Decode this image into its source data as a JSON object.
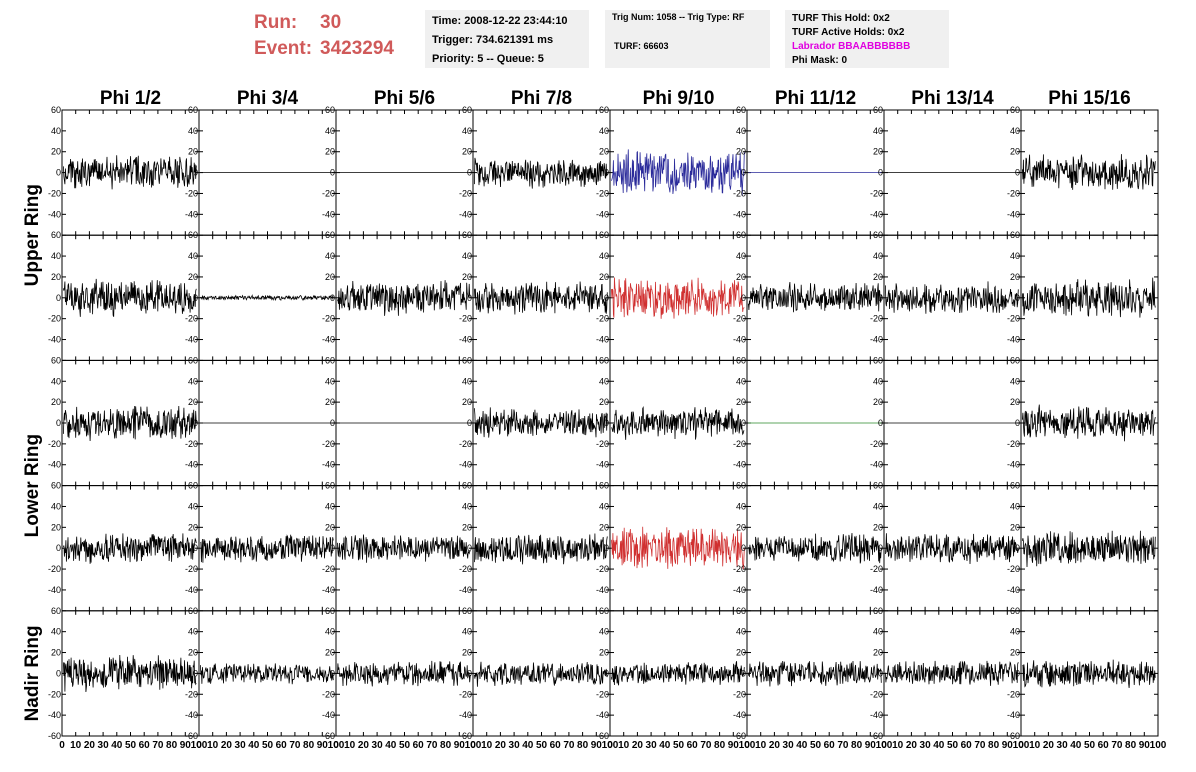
{
  "run_label": "Run:",
  "run_value": "30",
  "event_label": "Event:",
  "event_value": "3423294",
  "info": {
    "time": "Time: 2008-12-22 23:44:10",
    "trigger": "Trigger: 734.621391 ms",
    "priority": "Priority: 5 -- Queue: 5",
    "trig_num": "Trig Num: 1058 -- Trig Type: RF",
    "turf": "TURF: 66603",
    "turf_this_hold": "TURF This Hold: 0x2",
    "turf_active_holds": "TURF Active Holds: 0x2",
    "labrador": "Labrador BBAABBBBBB",
    "phi_mask": "Phi Mask: 0"
  },
  "colors": {
    "header_red": "#d05a5a",
    "labrador": "#e000e0",
    "trace_default": "#000000",
    "trace_blue": "#2a2a9a",
    "trace_red": "#d03030",
    "trace_green": "#2a8a2a"
  },
  "chart_data": {
    "type": "line",
    "columns": [
      "Phi 1/2",
      "Phi 3/4",
      "Phi 5/6",
      "Phi 7/8",
      "Phi 9/10",
      "Phi 11/12",
      "Phi 13/14",
      "Phi 15/16"
    ],
    "row_labels": [
      {
        "label": "Upper Ring",
        "rows": [
          0,
          1
        ]
      },
      {
        "label": "Lower Ring",
        "rows": [
          2,
          3
        ]
      },
      {
        "label": "Nadir Ring",
        "rows": [
          4
        ]
      }
    ],
    "xlim": [
      0,
      100
    ],
    "ylim": [
      -60,
      60
    ],
    "x_ticks": [
      0,
      10,
      20,
      30,
      40,
      50,
      60,
      70,
      80,
      90,
      100
    ],
    "y_ticks": [
      -40,
      -20,
      0,
      20,
      40,
      60
    ],
    "y_ticks_bottom_row": [
      -60,
      -40,
      -20,
      0,
      20,
      40,
      60
    ],
    "x_tick_labels_bottom": [
      "0",
      "10",
      "20",
      "30",
      "40",
      "50",
      "60",
      "70",
      "80",
      "90",
      "100"
    ],
    "y_tick_labels": [
      "60",
      "40",
      "20",
      "0",
      "-20",
      "-40",
      "-60"
    ],
    "panels": [
      [
        {
          "c": "k",
          "a": 15,
          "s": 1
        },
        {
          "c": "k",
          "a": 0,
          "s": 2
        },
        {
          "c": "k",
          "a": 0,
          "s": 3
        },
        {
          "c": "k",
          "a": 13,
          "s": 4
        },
        {
          "c": "b",
          "a": 20,
          "s": 5
        },
        {
          "c": "b",
          "a": 0,
          "s": 6
        },
        {
          "c": "k",
          "a": 0,
          "s": 7
        },
        {
          "c": "k",
          "a": 16,
          "s": 8
        }
      ],
      [
        {
          "c": "k",
          "a": 16,
          "s": 9
        },
        {
          "c": "k",
          "a": 2,
          "s": 10
        },
        {
          "c": "k",
          "a": 15,
          "s": 11
        },
        {
          "c": "k",
          "a": 14,
          "s": 12
        },
        {
          "c": "r",
          "a": 18,
          "s": 13
        },
        {
          "c": "k",
          "a": 13,
          "s": 14
        },
        {
          "c": "k",
          "a": 14,
          "s": 15
        },
        {
          "c": "k",
          "a": 18,
          "s": 16
        }
      ],
      [
        {
          "c": "k",
          "a": 15,
          "s": 17
        },
        {
          "c": "k",
          "a": 0,
          "s": 18
        },
        {
          "c": "k",
          "a": 0,
          "s": 19
        },
        {
          "c": "k",
          "a": 13,
          "s": 20
        },
        {
          "c": "k",
          "a": 14,
          "s": 21
        },
        {
          "c": "g",
          "a": 0,
          "s": 22
        },
        {
          "c": "k",
          "a": 0,
          "s": 23
        },
        {
          "c": "k",
          "a": 15,
          "s": 24
        }
      ],
      [
        {
          "c": "k",
          "a": 13,
          "s": 25
        },
        {
          "c": "k",
          "a": 12,
          "s": 26
        },
        {
          "c": "k",
          "a": 12,
          "s": 27
        },
        {
          "c": "k",
          "a": 14,
          "s": 28
        },
        {
          "c": "r",
          "a": 18,
          "s": 29
        },
        {
          "c": "k",
          "a": 13,
          "s": 30
        },
        {
          "c": "k",
          "a": 13,
          "s": 31
        },
        {
          "c": "k",
          "a": 16,
          "s": 32
        }
      ],
      [
        {
          "c": "k",
          "a": 16,
          "s": 33
        },
        {
          "c": "k",
          "a": 9,
          "s": 34
        },
        {
          "c": "k",
          "a": 11,
          "s": 35
        },
        {
          "c": "k",
          "a": 11,
          "s": 36
        },
        {
          "c": "k",
          "a": 10,
          "s": 37
        },
        {
          "c": "k",
          "a": 11,
          "s": 38
        },
        {
          "c": "k",
          "a": 11,
          "s": 39
        },
        {
          "c": "k",
          "a": 13,
          "s": 40
        }
      ]
    ]
  }
}
